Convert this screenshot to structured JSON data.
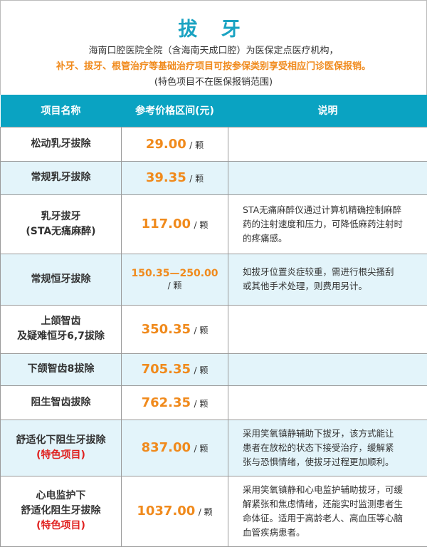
{
  "header": {
    "title": "拔 牙",
    "line1": "海南口腔医院全院（含海南天成口腔）为医保定点医疗机构，",
    "line2": "补牙、拔牙、根管治疗等基础治疗项目可按参保类别享受相应门诊医保报销。",
    "line3": "(特色项目不在医保报销范围)"
  },
  "table": {
    "columns": [
      "项目名称",
      "参考价格区间(元)",
      "说明"
    ],
    "unit": "/ 颗",
    "rows": [
      {
        "name": [
          "松动乳牙拔除"
        ],
        "price": "29.00",
        "desc": []
      },
      {
        "name": [
          "常规乳牙拔除"
        ],
        "price": "39.35",
        "desc": []
      },
      {
        "name": [
          "乳牙拔牙",
          "(STA无痛麻醉)"
        ],
        "price": "117.00",
        "desc": [
          "STA无痛麻醉仪通过计算机精确控制麻醉",
          "药的注射速度和压力，可降低麻药注射时",
          "的疼痛感。"
        ]
      },
      {
        "name": [
          "常规恒牙拔除"
        ],
        "price": "150.35—250.00",
        "desc": [
          "如拔牙位置炎症较重，需进行根尖搔刮",
          "或其他手术处理，则费用另计。"
        ]
      },
      {
        "name": [
          "上颌智齿",
          "及疑难恒牙6,7拔除"
        ],
        "price": "350.35",
        "desc": []
      },
      {
        "name": [
          "下颌智齿8拔除"
        ],
        "price": "705.35",
        "desc": []
      },
      {
        "name": [
          "阻生智齿拔除"
        ],
        "price": "762.35",
        "desc": []
      },
      {
        "name": [
          "舒适化下阻生牙拔除"
        ],
        "tag": "(特色项目)",
        "price": "837.00",
        "desc": [
          "采用笑氧镇静辅助下拔牙，该方式能让",
          "患者在放松的状态下接受治疗，缓解紧",
          "张与恐惧情绪，使拔牙过程更加顺利。"
        ]
      },
      {
        "name": [
          "心电监护下",
          "舒适化阻生牙拔除"
        ],
        "tag": "(特色项目)",
        "price": "1037.00",
        "desc": [
          "采用笑氧镇静和心电监护辅助拔牙，可缓",
          "解紧张和焦虑情绪，还能实时监测患者生",
          "命体征。适用于高龄老人、高血压等心脑",
          "血管疾病患者。"
        ]
      }
    ]
  },
  "colors": {
    "title": "#1aa3c2",
    "header_bg": "#0aa3c2",
    "price": "#f08a1c",
    "tag": "#e0201e",
    "alt_row": "#e3f4fa"
  }
}
